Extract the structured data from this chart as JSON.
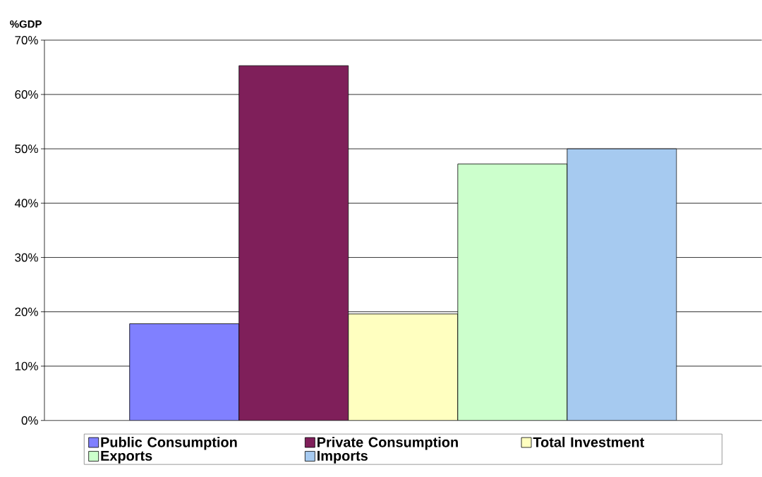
{
  "chart_data": {
    "type": "bar",
    "ylabel": "%GDP",
    "categories": [
      null
    ],
    "series": [
      {
        "name": "Public Consumption",
        "color": "#8080ff",
        "values": [
          17.8
        ]
      },
      {
        "name": "Private Consumption",
        "color": "#7f1f5a",
        "values": [
          65.3
        ]
      },
      {
        "name": "Total Investment",
        "color": "#ffffc0",
        "values": [
          19.6
        ]
      },
      {
        "name": "Exports",
        "color": "#ccffcc",
        "values": [
          47.2
        ]
      },
      {
        "name": "Imports",
        "color": "#a6caf0",
        "values": [
          50.0
        ]
      }
    ],
    "ylim": [
      0,
      70
    ],
    "yticks": [
      {
        "value": 0,
        "label": "0%"
      },
      {
        "value": 10,
        "label": "10%"
      },
      {
        "value": 20,
        "label": "20%"
      },
      {
        "value": 30,
        "label": "30%"
      },
      {
        "value": 40,
        "label": "40%"
      },
      {
        "value": 50,
        "label": "50%"
      },
      {
        "value": 60,
        "label": "60%"
      },
      {
        "value": 70,
        "label": "70%"
      }
    ],
    "grid": "y",
    "legend": "bottom"
  }
}
